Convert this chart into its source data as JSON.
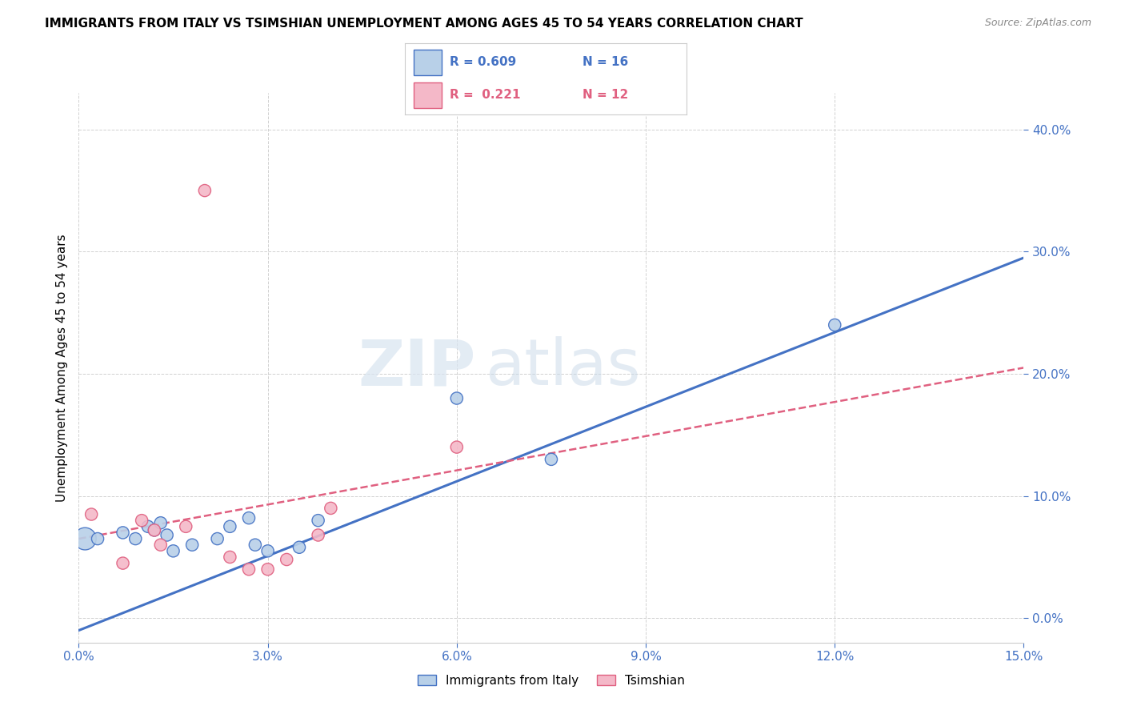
{
  "title": "IMMIGRANTS FROM ITALY VS TSIMSHIAN UNEMPLOYMENT AMONG AGES 45 TO 54 YEARS CORRELATION CHART",
  "source": "Source: ZipAtlas.com",
  "ylabel": "Unemployment Among Ages 45 to 54 years",
  "xlim": [
    0.0,
    0.15
  ],
  "ylim": [
    -0.02,
    0.43
  ],
  "xticks": [
    0.0,
    0.03,
    0.06,
    0.09,
    0.12,
    0.15
  ],
  "yticks": [
    0.0,
    0.1,
    0.2,
    0.3,
    0.4
  ],
  "blue_label": "Immigrants from Italy",
  "pink_label": "Tsimshian",
  "blue_R": "0.609",
  "blue_N": "16",
  "pink_R": "0.221",
  "pink_N": "12",
  "blue_color": "#b8d0e8",
  "blue_line_color": "#4472c4",
  "pink_color": "#f4b8c8",
  "pink_line_color": "#e06080",
  "watermark_zip": "ZIP",
  "watermark_atlas": "atlas",
  "blue_points_x": [
    0.001,
    0.003,
    0.007,
    0.009,
    0.011,
    0.012,
    0.013,
    0.014,
    0.015,
    0.018,
    0.022,
    0.024,
    0.027,
    0.028,
    0.03,
    0.035,
    0.038,
    0.06,
    0.075,
    0.12
  ],
  "blue_points_y": [
    0.065,
    0.065,
    0.07,
    0.065,
    0.075,
    0.072,
    0.078,
    0.068,
    0.055,
    0.06,
    0.065,
    0.075,
    0.082,
    0.06,
    0.055,
    0.058,
    0.08,
    0.18,
    0.13,
    0.24
  ],
  "blue_sizes": [
    400,
    120,
    120,
    120,
    120,
    120,
    120,
    120,
    120,
    120,
    120,
    120,
    120,
    120,
    120,
    120,
    120,
    120,
    120,
    120
  ],
  "pink_points_x": [
    0.002,
    0.007,
    0.01,
    0.012,
    0.013,
    0.017,
    0.02,
    0.024,
    0.027,
    0.03,
    0.033,
    0.038,
    0.04,
    0.06
  ],
  "pink_points_y": [
    0.085,
    0.045,
    0.08,
    0.072,
    0.06,
    0.075,
    0.35,
    0.05,
    0.04,
    0.04,
    0.048,
    0.068,
    0.09,
    0.14
  ],
  "pink_sizes": [
    120,
    120,
    120,
    120,
    120,
    120,
    120,
    120,
    120,
    120,
    120,
    120,
    120,
    120
  ],
  "blue_line_x0": 0.0,
  "blue_line_y0": -0.01,
  "blue_line_x1": 0.15,
  "blue_line_y1": 0.295,
  "pink_line_x0": 0.0,
  "pink_line_y0": 0.065,
  "pink_line_x1": 0.15,
  "pink_line_y1": 0.205
}
